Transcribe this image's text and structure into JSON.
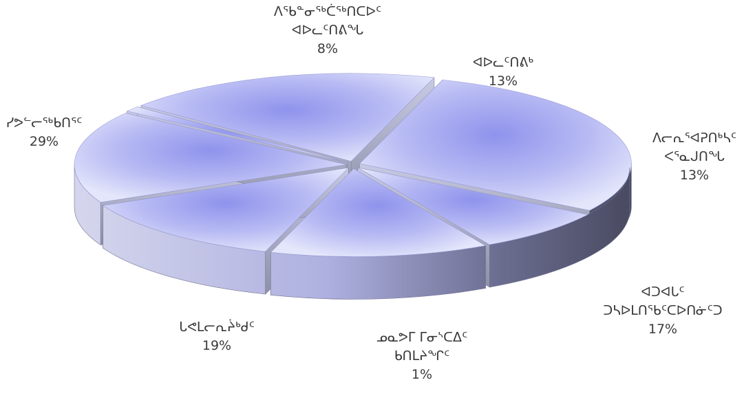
{
  "chart_data": {
    "type": "pie",
    "title": "",
    "slices": [
      {
        "label": [
          "ᐊᐅᓚᑦᑎᕕᒃ"
        ],
        "value": 13,
        "percent_label": "13%"
      },
      {
        "label": [
          "ᐱᓕᕆᕐᐊᕈᑎᒃᓴᑦ",
          "ᐸᕐᓇᒍᑎᖓ"
        ],
        "value": 13,
        "percent_label": "13%"
      },
      {
        "label": [
          "ᐊᑐᐊᒐᑦ",
          "ᑐᓴᐅᒪᑎᖃᑦᑕᐅᑎᓃᑦᑐ"
        ],
        "value": 17,
        "percent_label": "17%"
      },
      {
        "label": [
          "ᓄᓇᕗᒥ ᒥᓂᔅᑕᐃᑦ",
          "ᑲᑎᒪᔨᖏᑦ"
        ],
        "value": 1,
        "percent_label": "1%"
      },
      {
        "label": [
          "ᒐᕙᒪᓕᕆᔩᒃᑯᑦ"
        ],
        "value": 19,
        "percent_label": "19%"
      },
      {
        "label": [
          "ᓯᕗᓪᓕᖅᑲᑎᕐᑦ"
        ],
        "value": 29,
        "percent_label": "29%"
      },
      {
        "label": [
          "ᐱᖃᓐᓂᖅᑖᖅᑎᑕᐅᑦ",
          "ᐊᐅᓚᑦᑎᕕᖓ"
        ],
        "value": 8,
        "percent_label": "8%"
      }
    ],
    "legend": "none",
    "colors": {
      "top_light": "#e4e6fb",
      "top_dark": "#8f93ec",
      "side_light": "#d4d5ec",
      "side_dark": "#4a4b62",
      "label": "#3a3a3a"
    }
  }
}
